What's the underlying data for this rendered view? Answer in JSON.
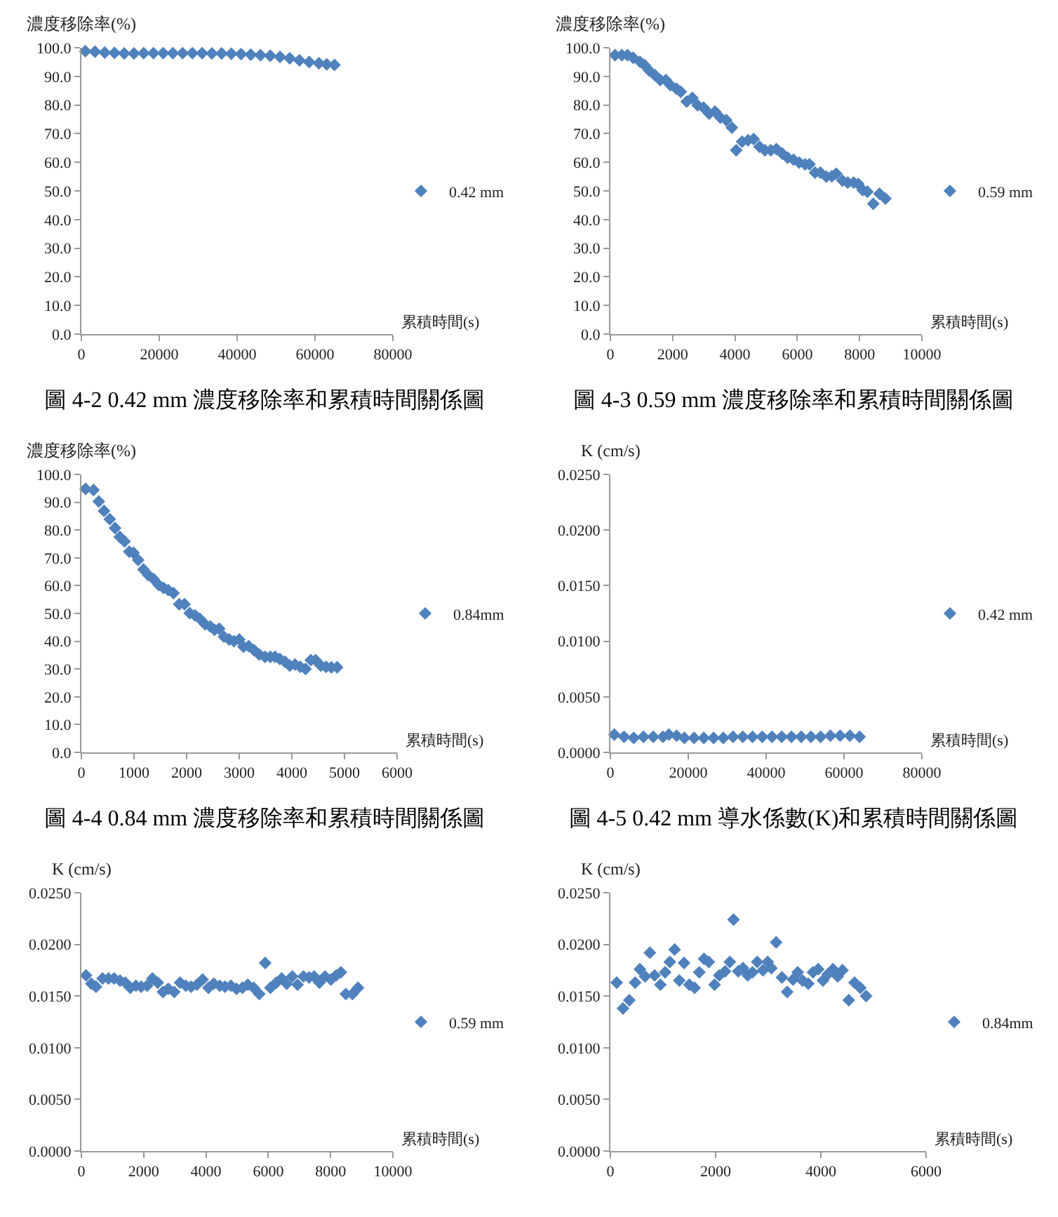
{
  "chart_data": [
    {
      "type": "scatter",
      "ylabel": "濃度移除率(%)",
      "xlabel": "累積時間(s)",
      "marker": "diamond",
      "legend": "right",
      "annotations": [
        "圖 4-2 0.42 mm 濃度移除率和累積時間關係圖"
      ],
      "xlim": [
        0,
        80000
      ],
      "xticks": [
        0,
        20000,
        40000,
        60000,
        80000
      ],
      "ylim": [
        0,
        100
      ],
      "yticks": [
        {
          "value": 0,
          "label": "0.0"
        },
        {
          "value": 10,
          "label": "10.0"
        },
        {
          "value": 20,
          "label": "20.0"
        },
        {
          "value": 30,
          "label": "30.0"
        },
        {
          "value": 40,
          "label": "40.0"
        },
        {
          "value": 50,
          "label": "50.0"
        },
        {
          "value": 60,
          "label": "60.0"
        },
        {
          "value": 70,
          "label": "70.0"
        },
        {
          "value": 80,
          "label": "80.0"
        },
        {
          "value": 90,
          "label": "90.0"
        },
        {
          "value": 100,
          "label": "100.0"
        }
      ],
      "x": [
        1000,
        3500,
        6000,
        8500,
        11000,
        13500,
        16000,
        18500,
        21000,
        23500,
        26000,
        28500,
        31000,
        33500,
        36000,
        38500,
        41000,
        43500,
        46000,
        48500,
        51000,
        53500,
        56000,
        58500,
        61000,
        63000,
        65000
      ],
      "series": [
        {
          "name": "0.42 mm",
          "color": "#4f81bd",
          "values": [
            98.8,
            98.6,
            98.3,
            98.2,
            98.0,
            98.0,
            98.1,
            98.1,
            98.1,
            98.1,
            98.1,
            98.1,
            98.1,
            98.0,
            98.0,
            97.9,
            97.8,
            97.6,
            97.4,
            97.2,
            96.8,
            96.3,
            95.6,
            95.0,
            94.6,
            94.2,
            94.0
          ]
        }
      ]
    },
    {
      "type": "scatter",
      "ylabel": "濃度移除率(%)",
      "xlabel": "累積時間(s)",
      "marker": "diamond",
      "legend": "right",
      "annotations": [
        "圖 4-3 0.59 mm 濃度移除率和累積時間關係圖"
      ],
      "xlim": [
        0,
        10000
      ],
      "xticks": [
        0,
        2000,
        4000,
        6000,
        8000,
        10000
      ],
      "ylim": [
        0,
        100
      ],
      "yticks": [
        {
          "value": 0,
          "label": "0.0"
        },
        {
          "value": 10,
          "label": "10.0"
        },
        {
          "value": 20,
          "label": "20.0"
        },
        {
          "value": 30,
          "label": "30.0"
        },
        {
          "value": 40,
          "label": "40.0"
        },
        {
          "value": 50,
          "label": "50.0"
        },
        {
          "value": 60,
          "label": "60.0"
        },
        {
          "value": 70,
          "label": "70.0"
        },
        {
          "value": 80,
          "label": "80.0"
        },
        {
          "value": 90,
          "label": "90.0"
        },
        {
          "value": 100,
          "label": "100.0"
        }
      ],
      "x": [
        150,
        370,
        550,
        730,
        950,
        1100,
        1240,
        1430,
        1600,
        1780,
        1930,
        2120,
        2260,
        2450,
        2630,
        2800,
        2990,
        3170,
        3360,
        3530,
        3720,
        3900,
        4040,
        4230,
        4420,
        4600,
        4790,
        4960,
        5150,
        5330,
        5520,
        5690,
        5880,
        6060,
        6250,
        6390,
        6570,
        6740,
        6930,
        7110,
        7250,
        7450,
        7620,
        7810,
        7960,
        8100,
        8250,
        8440,
        8640,
        8830
      ],
      "series": [
        {
          "name": "0.59 mm",
          "color": "#4f81bd",
          "values": [
            97.4,
            97.4,
            97.4,
            96.5,
            95.1,
            93.9,
            92.1,
            90.4,
            88.7,
            88.7,
            86.9,
            85.7,
            84.6,
            81.2,
            82.5,
            79.9,
            79.1,
            77.0,
            77.7,
            75.6,
            74.7,
            72.1,
            64.2,
            67.2,
            67.7,
            68.1,
            65.4,
            64.2,
            64.2,
            64.6,
            63.0,
            61.6,
            60.9,
            59.9,
            59.3,
            59.3,
            56.4,
            56.4,
            55.0,
            55.1,
            56.0,
            53.6,
            52.9,
            52.9,
            52.4,
            50.3,
            49.7,
            45.5,
            49.0,
            47.3
          ]
        }
      ]
    },
    {
      "type": "scatter",
      "ylabel": "濃度移除率(%)",
      "xlabel": "累積時間(s)",
      "marker": "diamond",
      "legend": "right",
      "annotations": [
        "圖 4-4 0.84 mm 濃度移除率和累積時間關係圖"
      ],
      "xlim": [
        0,
        6000
      ],
      "xticks": [
        0,
        1000,
        2000,
        3000,
        4000,
        5000,
        6000
      ],
      "ylim": [
        0,
        100
      ],
      "yticks": [
        {
          "value": 0,
          "label": "0.0"
        },
        {
          "value": 10,
          "label": "10.0"
        },
        {
          "value": 20,
          "label": "20.0"
        },
        {
          "value": 30,
          "label": "30.0"
        },
        {
          "value": 40,
          "label": "40.0"
        },
        {
          "value": 50,
          "label": "50.0"
        },
        {
          "value": 60,
          "label": "60.0"
        },
        {
          "value": 70,
          "label": "70.0"
        },
        {
          "value": 80,
          "label": "80.0"
        },
        {
          "value": 90,
          "label": "90.0"
        },
        {
          "value": 100,
          "label": "100.0"
        }
      ],
      "x": [
        80,
        230,
        330,
        430,
        540,
        640,
        730,
        820,
        910,
        990,
        1080,
        1180,
        1270,
        1370,
        1470,
        1560,
        1650,
        1750,
        1860,
        1960,
        2060,
        2160,
        2250,
        2350,
        2450,
        2530,
        2620,
        2710,
        2810,
        2900,
        3000,
        3080,
        3180,
        3280,
        3380,
        3490,
        3590,
        3680,
        3770,
        3870,
        3960,
        4060,
        4160,
        4260,
        4360,
        4450,
        4550,
        4650,
        4750,
        4860
      ],
      "series": [
        {
          "name": "0.84mm",
          "color": "#4f81bd",
          "values": [
            94.8,
            94.4,
            90.3,
            86.9,
            83.9,
            80.7,
            77.5,
            75.9,
            72.2,
            71.8,
            69.2,
            65.8,
            63.8,
            62.4,
            60.2,
            59.2,
            58.4,
            57.3,
            53.3,
            53.3,
            50.1,
            49.3,
            48.1,
            46.1,
            45.3,
            44.1,
            44.5,
            41.6,
            40.6,
            40.0,
            40.6,
            38.0,
            38.2,
            36.8,
            35.2,
            34.4,
            34.4,
            34.4,
            33.6,
            32.6,
            31.2,
            31.6,
            30.8,
            30.0,
            33.2,
            33.2,
            31.2,
            30.8,
            30.6,
            30.6
          ]
        }
      ]
    },
    {
      "type": "scatter",
      "ylabel": "K (cm/s)",
      "xlabel": "累積時間(s)",
      "marker": "diamond",
      "legend": "right",
      "annotations": [
        "圖 4-5 0.42 mm 導水係數(K)和累積時間關係圖"
      ],
      "xlim": [
        0,
        80000
      ],
      "xticks": [
        0,
        20000,
        40000,
        60000,
        80000
      ],
      "ylim": [
        0,
        0.025
      ],
      "yticks": [
        {
          "value": 0,
          "label": "0.0000"
        },
        {
          "value": 0.005,
          "label": "0.0050"
        },
        {
          "value": 0.01,
          "label": "0.0100"
        },
        {
          "value": 0.015,
          "label": "0.0150"
        },
        {
          "value": 0.02,
          "label": "0.0200"
        },
        {
          "value": 0.025,
          "label": "0.0250"
        }
      ],
      "x": [
        1000,
        3500,
        6000,
        8500,
        11000,
        13500,
        15000,
        17000,
        19000,
        21500,
        24000,
        26500,
        29000,
        31500,
        34000,
        36500,
        39000,
        41500,
        44000,
        46500,
        49000,
        51500,
        54000,
        56500,
        59000,
        61500,
        64000
      ],
      "series": [
        {
          "name": "0.42 mm",
          "color": "#4f81bd",
          "values": [
            0.0016,
            0.0014,
            0.0013,
            0.0014,
            0.0014,
            0.0014,
            0.0016,
            0.0015,
            0.0013,
            0.0013,
            0.0013,
            0.0013,
            0.0013,
            0.0014,
            0.0014,
            0.0014,
            0.0014,
            0.0014,
            0.0014,
            0.0014,
            0.0014,
            0.0014,
            0.0014,
            0.0015,
            0.0015,
            0.0015,
            0.0014
          ]
        }
      ]
    },
    {
      "type": "scatter",
      "ylabel": "K (cm/s)",
      "xlabel": "累積時間(s)",
      "marker": "diamond",
      "legend": "right",
      "xlim": [
        0,
        10000
      ],
      "xticks": [
        0,
        2000,
        4000,
        6000,
        8000,
        10000
      ],
      "ylim": [
        0,
        0.025
      ],
      "yticks": [
        {
          "value": 0,
          "label": "0.0000"
        },
        {
          "value": 0.005,
          "label": "0.0050"
        },
        {
          "value": 0.01,
          "label": "0.0100"
        },
        {
          "value": 0.015,
          "label": "0.0150"
        },
        {
          "value": 0.02,
          "label": "0.0200"
        },
        {
          "value": 0.025,
          "label": "0.0250"
        }
      ],
      "x": [
        150,
        320,
        470,
        680,
        870,
        1050,
        1240,
        1410,
        1570,
        1750,
        1920,
        2110,
        2280,
        2450,
        2620,
        2790,
        2980,
        3170,
        3350,
        3520,
        3710,
        3890,
        4080,
        4250,
        4440,
        4610,
        4800,
        4980,
        5170,
        5340,
        5530,
        5710,
        5900,
        6070,
        6260,
        6430,
        6590,
        6770,
        6940,
        7130,
        7310,
        7470,
        7640,
        7820,
        8010,
        8180,
        8330,
        8490,
        8700,
        8880
      ],
      "series": [
        {
          "name": "0.59 mm",
          "color": "#4f81bd",
          "values": [
            0.017,
            0.0162,
            0.0159,
            0.0167,
            0.0167,
            0.0167,
            0.0165,
            0.0163,
            0.0158,
            0.016,
            0.0159,
            0.016,
            0.0167,
            0.0163,
            0.0154,
            0.0157,
            0.0154,
            0.0163,
            0.016,
            0.0159,
            0.0161,
            0.0166,
            0.0158,
            0.0162,
            0.016,
            0.0159,
            0.016,
            0.0157,
            0.0158,
            0.0161,
            0.0158,
            0.0152,
            0.0182,
            0.0158,
            0.0163,
            0.0167,
            0.0162,
            0.0169,
            0.0161,
            0.0169,
            0.0168,
            0.0169,
            0.0163,
            0.0169,
            0.0166,
            0.017,
            0.0173,
            0.0152,
            0.0152,
            0.0158
          ]
        }
      ]
    },
    {
      "type": "scatter",
      "ylabel": "K (cm/s)",
      "xlabel": "累積時間(s)",
      "marker": "diamond",
      "legend": "right",
      "xlim": [
        0,
        6000
      ],
      "xticks": [
        0,
        2000,
        4000,
        6000
      ],
      "ylim": [
        0,
        0.025
      ],
      "yticks": [
        {
          "value": 0,
          "label": "0.0000"
        },
        {
          "value": 0.005,
          "label": "0.0050"
        },
        {
          "value": 0.01,
          "label": "0.0100"
        },
        {
          "value": 0.015,
          "label": "0.0150"
        },
        {
          "value": 0.02,
          "label": "0.0200"
        },
        {
          "value": 0.025,
          "label": "0.0250"
        }
      ],
      "x": [
        120,
        240,
        360,
        470,
        560,
        660,
        750,
        840,
        950,
        1040,
        1130,
        1220,
        1310,
        1400,
        1500,
        1600,
        1690,
        1780,
        1870,
        1980,
        2070,
        2180,
        2270,
        2340,
        2430,
        2520,
        2610,
        2700,
        2790,
        2900,
        2990,
        3060,
        3150,
        3260,
        3360,
        3470,
        3560,
        3650,
        3760,
        3850,
        3950,
        4040,
        4130,
        4230,
        4320,
        4410,
        4530,
        4640,
        4750,
        4860
      ],
      "series": [
        {
          "name": "0.84mm",
          "color": "#4f81bd",
          "values": [
            0.0163,
            0.0138,
            0.0146,
            0.0163,
            0.0176,
            0.0169,
            0.0192,
            0.017,
            0.0161,
            0.0173,
            0.0183,
            0.0195,
            0.0165,
            0.0182,
            0.0161,
            0.0158,
            0.0173,
            0.0186,
            0.0183,
            0.0161,
            0.017,
            0.0174,
            0.0183,
            0.0224,
            0.0174,
            0.0177,
            0.017,
            0.0173,
            0.0183,
            0.0175,
            0.0183,
            0.0177,
            0.0202,
            0.0168,
            0.0154,
            0.0166,
            0.0173,
            0.0165,
            0.0162,
            0.0173,
            0.0176,
            0.0165,
            0.0171,
            0.0176,
            0.0169,
            0.0175,
            0.0146,
            0.0163,
            0.0158,
            0.015
          ]
        }
      ]
    }
  ]
}
